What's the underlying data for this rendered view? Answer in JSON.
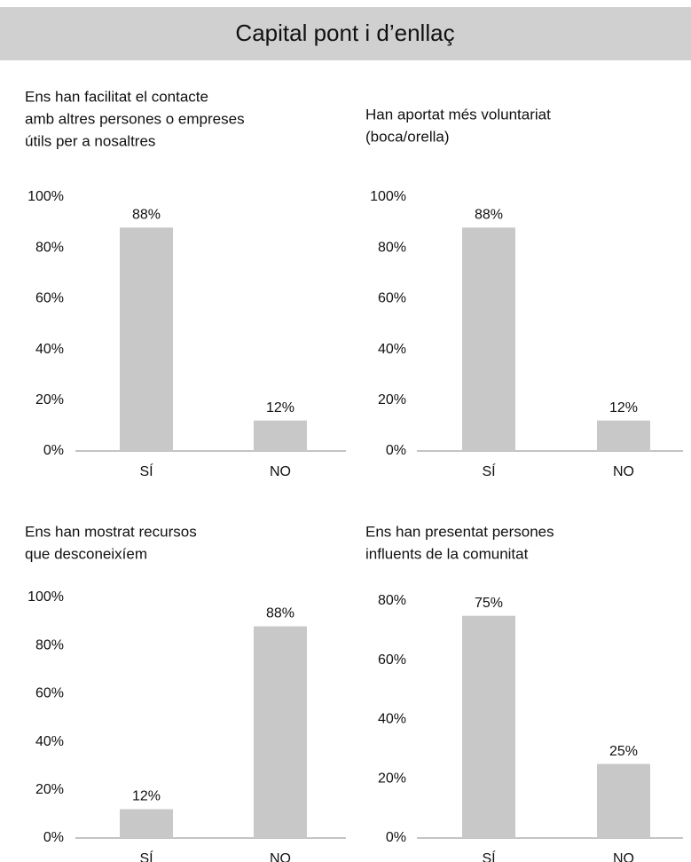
{
  "header": {
    "title": "Capital pont i d’enllaç"
  },
  "chart_data": [
    {
      "type": "bar",
      "title": [
        "Ens han facilitat el contacte",
        "amb altres persones o empreses",
        "útils per a nosaltres"
      ],
      "categories": [
        "SÍ",
        "NO"
      ],
      "values": [
        88,
        12
      ],
      "value_labels": [
        "88%",
        "12%"
      ],
      "color": "#c8c8c8",
      "ylim": [
        0,
        100
      ],
      "yticks": [
        {
          "value": 0,
          "label": "0%"
        },
        {
          "value": 20,
          "label": "20%"
        },
        {
          "value": 40,
          "label": "40%"
        },
        {
          "value": 60,
          "label": "60%"
        },
        {
          "value": 80,
          "label": "80%"
        },
        {
          "value": 100,
          "label": "100%"
        }
      ],
      "grid": false
    },
    {
      "type": "bar",
      "title": [
        "Han aportat més voluntariat",
        "(boca/orella)"
      ],
      "categories": [
        "SÍ",
        "NO"
      ],
      "values": [
        88,
        12
      ],
      "value_labels": [
        "88%",
        "12%"
      ],
      "color": "#c8c8c8",
      "ylim": [
        0,
        100
      ],
      "yticks": [
        {
          "value": 0,
          "label": "0%"
        },
        {
          "value": 20,
          "label": "20%"
        },
        {
          "value": 40,
          "label": "40%"
        },
        {
          "value": 60,
          "label": "60%"
        },
        {
          "value": 80,
          "label": "80%"
        },
        {
          "value": 100,
          "label": "100%"
        }
      ],
      "grid": false
    },
    {
      "type": "bar",
      "title": [
        "Ens han mostrat recursos",
        "que desconeixíem"
      ],
      "categories": [
        "SÍ",
        "NO"
      ],
      "values": [
        12,
        88
      ],
      "value_labels": [
        "12%",
        "88%"
      ],
      "color": "#c8c8c8",
      "ylim": [
        0,
        100
      ],
      "yticks": [
        {
          "value": 0,
          "label": "0%"
        },
        {
          "value": 20,
          "label": "20%"
        },
        {
          "value": 40,
          "label": "40%"
        },
        {
          "value": 60,
          "label": "60%"
        },
        {
          "value": 80,
          "label": "80%"
        },
        {
          "value": 100,
          "label": "100%"
        }
      ],
      "grid": false
    },
    {
      "type": "bar",
      "title": [
        "Ens han presentat persones",
        "influents de la comunitat"
      ],
      "categories": [
        "SÍ",
        "NO"
      ],
      "values": [
        75,
        25
      ],
      "value_labels": [
        "75%",
        "25%"
      ],
      "color": "#c8c8c8",
      "ylim": [
        0,
        80
      ],
      "yticks": [
        {
          "value": 0,
          "label": "0%"
        },
        {
          "value": 20,
          "label": "20%"
        },
        {
          "value": 40,
          "label": "40%"
        },
        {
          "value": 60,
          "label": "60%"
        },
        {
          "value": 80,
          "label": "80%"
        }
      ],
      "grid": false
    }
  ]
}
